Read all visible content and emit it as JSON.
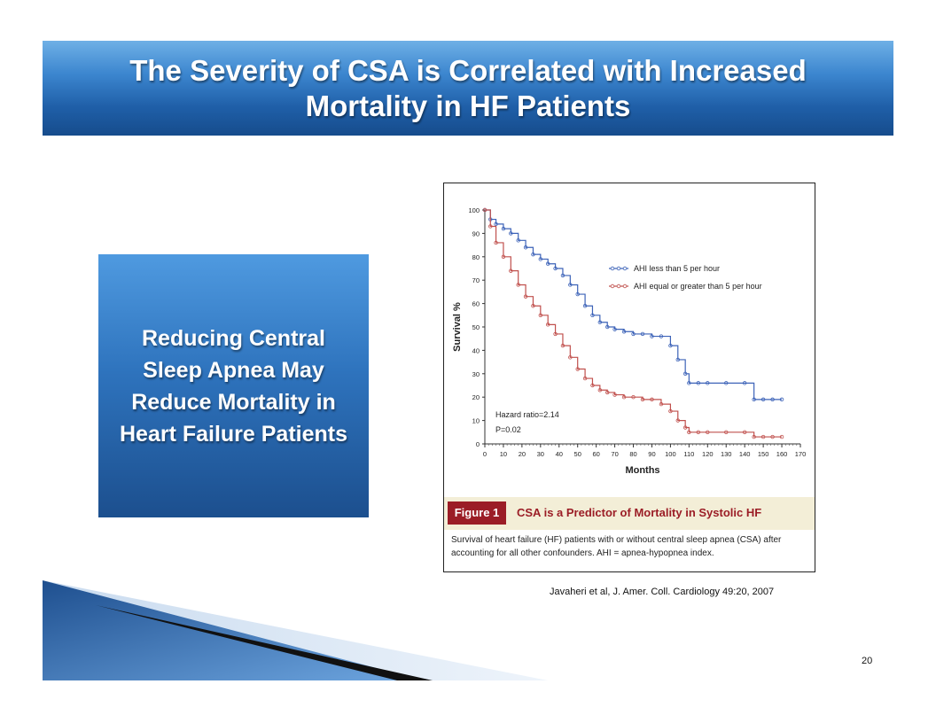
{
  "slide": {
    "title": "The Severity of CSA is Correlated with Increased Mortality in HF Patients",
    "callout": "Reducing Central Sleep Apnea May Reduce Mortality in Heart Failure Patients",
    "citation": "Javaheri et al, J. Amer. Coll. Cardiology 49:20, 2007",
    "page_number": "20"
  },
  "figure": {
    "label": "Figure 1",
    "caption_title": "CSA is a Predictor of Mortality in Systolic HF",
    "description": "Survival of heart failure (HF) patients with or without central sleep apnea (CSA) after accounting for all other confounders. AHI = apnea-hypopnea index."
  },
  "colors": {
    "blue_series": "#3d63b8",
    "red_series": "#c0504d",
    "figure_red": "#9b1d26",
    "title_blue": "#1f5fa8"
  },
  "chart_data": {
    "type": "line",
    "title": "",
    "xlabel": "Months",
    "ylabel": "Survival %",
    "xlim": [
      0,
      170
    ],
    "ylim": [
      0,
      100
    ],
    "x_ticks": [
      "0",
      "10",
      "20",
      "30",
      "40",
      "50",
      "60",
      "70",
      "80",
      "90",
      "100",
      "110",
      "120",
      "130",
      "140",
      "150",
      "160",
      "170"
    ],
    "y_ticks": [
      "0",
      "10",
      "20",
      "30",
      "40",
      "50",
      "60",
      "70",
      "80",
      "90",
      "100"
    ],
    "grid": false,
    "legend_position": "top-right",
    "annotations": [
      "Hazard ratio=2.14",
      "P=0.02"
    ],
    "series": [
      {
        "name": "AHI less than 5 per hour",
        "x": [
          0,
          3,
          6,
          10,
          14,
          18,
          22,
          26,
          30,
          34,
          38,
          42,
          46,
          50,
          54,
          58,
          62,
          66,
          70,
          75,
          80,
          85,
          90,
          95,
          100,
          104,
          108,
          110,
          115,
          120,
          130,
          140,
          145,
          150,
          155,
          160
        ],
        "y": [
          100,
          96,
          94,
          92,
          90,
          87,
          84,
          81,
          79,
          77,
          75,
          72,
          68,
          64,
          59,
          55,
          52,
          50,
          49,
          48,
          47,
          47,
          46,
          46,
          42,
          36,
          30,
          26,
          26,
          26,
          26,
          26,
          19,
          19,
          19,
          19
        ]
      },
      {
        "name": "AHI equal or greater than 5 per hour",
        "x": [
          0,
          3,
          6,
          10,
          14,
          18,
          22,
          26,
          30,
          34,
          38,
          42,
          46,
          50,
          54,
          58,
          62,
          66,
          70,
          75,
          80,
          85,
          90,
          95,
          100,
          104,
          108,
          110,
          115,
          120,
          130,
          140,
          145,
          150,
          155,
          160
        ],
        "y": [
          100,
          93,
          86,
          80,
          74,
          68,
          63,
          59,
          55,
          51,
          47,
          42,
          37,
          32,
          28,
          25,
          23,
          22,
          21,
          20,
          20,
          19,
          19,
          17,
          14,
          10,
          7,
          5,
          5,
          5,
          5,
          5,
          3,
          3,
          3,
          3
        ]
      }
    ]
  }
}
